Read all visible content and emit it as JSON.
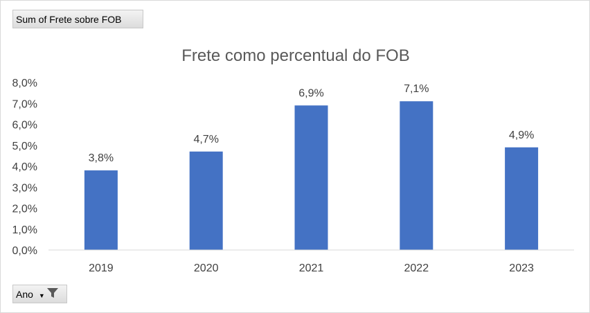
{
  "value_field_button": "Sum of Frete sobre FOB",
  "axis_field_button": "Ano",
  "chart_data": {
    "type": "bar",
    "title": "Frete como percentual do FOB",
    "categories": [
      "2019",
      "2020",
      "2021",
      "2022",
      "2023"
    ],
    "values": [
      3.8,
      4.7,
      6.9,
      7.1,
      4.9
    ],
    "data_labels": [
      "3,8%",
      "4,7%",
      "6,9%",
      "7,1%",
      "4,9%"
    ],
    "yticks": [
      "0,0%",
      "1,0%",
      "2,0%",
      "3,0%",
      "4,0%",
      "5,0%",
      "6,0%",
      "7,0%",
      "8,0%"
    ],
    "ylim": [
      0,
      8
    ],
    "grid": false,
    "bar_color": "#4472c4",
    "xlabel": "",
    "ylabel": ""
  }
}
